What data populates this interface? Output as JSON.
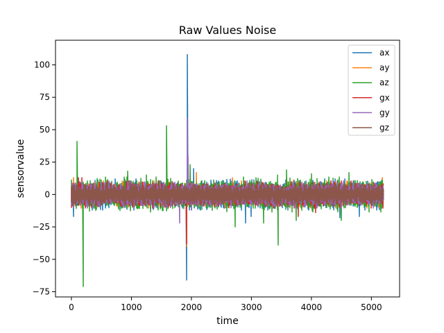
{
  "chart_data": {
    "type": "line",
    "title": "Raw Values Noise",
    "xlabel": "time",
    "ylabel": "sensorvalue",
    "xlim": [
      -265,
      5470
    ],
    "ylim": [
      -79,
      119
    ],
    "xticks": [
      0,
      1000,
      2000,
      3000,
      4000,
      5000
    ],
    "yticks": [
      -75,
      -50,
      -25,
      0,
      25,
      50,
      75,
      100
    ],
    "grid": false,
    "legend": "top-right",
    "n_points": 5200,
    "series": [
      {
        "name": "ax",
        "color": "#1f77b4",
        "noise": 4.0,
        "spikes": [
          [
            30,
            -17
          ],
          [
            1925,
            -66
          ],
          [
            1930,
            108
          ],
          [
            2040,
            20
          ],
          [
            2900,
            -22
          ],
          [
            3000,
            -17
          ],
          [
            4470,
            -18
          ],
          [
            4800,
            -17
          ]
        ]
      },
      {
        "name": "ay",
        "color": "#ff7f0e",
        "noise": 3.5,
        "spikes": [
          [
            40,
            13
          ],
          [
            1925,
            -40
          ],
          [
            2080,
            17
          ],
          [
            2680,
            13
          ],
          [
            3700,
            11
          ],
          [
            4600,
            10
          ],
          [
            5180,
            13
          ]
        ]
      },
      {
        "name": "az",
        "color": "#2ca02c",
        "noise": 4.5,
        "spikes": [
          [
            90,
            41
          ],
          [
            200,
            -71
          ],
          [
            940,
            18
          ],
          [
            1250,
            15
          ],
          [
            1580,
            53
          ],
          [
            1975,
            23
          ],
          [
            2730,
            -25
          ],
          [
            3200,
            -22
          ],
          [
            3430,
            15
          ],
          [
            3450,
            -39
          ],
          [
            3580,
            19
          ],
          [
            4000,
            16
          ],
          [
            4630,
            17
          ],
          [
            4500,
            -20
          ],
          [
            3750,
            -20
          ],
          [
            5230,
            14
          ]
        ]
      },
      {
        "name": "gx",
        "color": "#d62728",
        "noise": 3.5,
        "spikes": [
          [
            120,
            13
          ],
          [
            180,
            13
          ],
          [
            1920,
            -38
          ],
          [
            1650,
            -10
          ],
          [
            3780,
            -17
          ],
          [
            4070,
            -14
          ]
        ]
      },
      {
        "name": "gy",
        "color": "#9467bd",
        "noise": 3.5,
        "spikes": [
          [
            1800,
            -22
          ],
          [
            1935,
            59
          ],
          [
            1940,
            30
          ],
          [
            2000,
            -12
          ]
        ]
      },
      {
        "name": "gz",
        "color": "#8c564b",
        "noise": 3.0,
        "spikes": []
      }
    ]
  }
}
